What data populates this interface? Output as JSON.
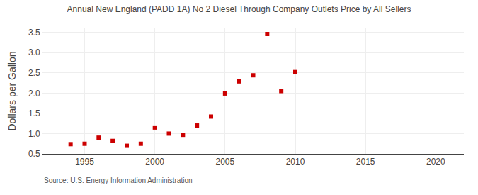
{
  "chart_data": {
    "type": "scatter",
    "title": "Annual New England (PADD 1A) No 2 Diesel Through Company Outlets Price by All Sellers",
    "ylabel": "Dollars per Gallon",
    "annotations": [
      "Source: U.S. Energy Information Administration"
    ],
    "x": [
      1994,
      1995,
      1996,
      1997,
      1998,
      1999,
      2000,
      2001,
      2002,
      2003,
      2004,
      2005,
      2006,
      2007,
      2008,
      2009,
      2010
    ],
    "values": [
      0.74,
      0.75,
      0.9,
      0.82,
      0.7,
      0.75,
      1.15,
      1.0,
      0.97,
      1.2,
      1.42,
      1.99,
      2.29,
      2.44,
      3.46,
      2.05,
      2.52
    ],
    "color": "#cc0000",
    "marker": "square",
    "xlim": [
      1992,
      2022
    ],
    "ylim": [
      0.5,
      3.6
    ],
    "xticks": [
      1995,
      2000,
      2005,
      2010,
      2015,
      2020
    ],
    "yticks": [
      0.5,
      {
        "value": 1,
        "label": "1.0"
      },
      1.5,
      {
        "value": 2,
        "label": "2.0"
      },
      2.5,
      {
        "value": 3,
        "label": "3.0"
      },
      3.5
    ],
    "grid": true
  }
}
